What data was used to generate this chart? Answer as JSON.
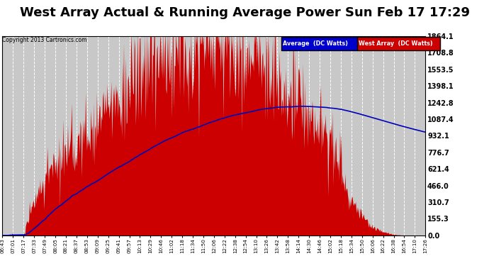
{
  "title": "West Array Actual & Running Average Power Sun Feb 17 17:29",
  "copyright": "Copyright 2013 Cartronics.com",
  "ylabel_right_values": [
    0.0,
    155.3,
    310.7,
    466.0,
    621.4,
    776.7,
    932.1,
    1087.4,
    1242.8,
    1398.1,
    1553.5,
    1708.8,
    1864.1
  ],
  "ymax": 1864.1,
  "ymin": 0.0,
  "x_tick_labels": [
    "06:43",
    "07:01",
    "07:17",
    "07:33",
    "07:49",
    "08:05",
    "08:21",
    "08:37",
    "08:53",
    "09:09",
    "09:25",
    "09:41",
    "09:57",
    "10:13",
    "10:29",
    "10:46",
    "11:02",
    "11:18",
    "11:34",
    "11:50",
    "12:06",
    "12:22",
    "12:38",
    "12:54",
    "13:10",
    "13:26",
    "13:42",
    "13:58",
    "14:14",
    "14:30",
    "14:46",
    "15:02",
    "15:18",
    "15:34",
    "15:50",
    "16:06",
    "16:22",
    "16:38",
    "16:54",
    "17:10",
    "17:26"
  ],
  "bg_color": "#ffffff",
  "plot_bg_color": "#c8c8c8",
  "grid_color": "#ffffff",
  "fill_color": "#cc0000",
  "line_color": "#0000bb",
  "title_fontsize": 13,
  "legend_avg_label": "Average  (DC Watts)",
  "legend_west_label": "West Array  (DC Watts)",
  "legend_avg_bg": "#0000cc",
  "legend_west_bg": "#cc0000"
}
